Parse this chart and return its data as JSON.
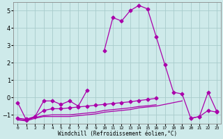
{
  "xlabel": "Windchill (Refroidissement éolien,°C)",
  "background_color": "#ceeaea",
  "grid_color": "#a8cccc",
  "line_color": "#aa00aa",
  "x": [
    0,
    1,
    2,
    3,
    4,
    5,
    6,
    7,
    8,
    9,
    10,
    11,
    12,
    13,
    14,
    15,
    16,
    17,
    18,
    19,
    20,
    21,
    22,
    23
  ],
  "y_main": [
    -0.3,
    -1.3,
    -1.1,
    -0.2,
    -0.2,
    -0.4,
    -0.2,
    -0.5,
    0.4,
    null,
    2.7,
    4.6,
    4.4,
    5.0,
    5.3,
    5.1,
    3.5,
    1.9,
    0.3,
    0.2,
    -1.2,
    -1.1,
    0.3,
    -0.8
  ],
  "y_line2": [
    -1.2,
    -1.25,
    -1.1,
    -0.75,
    -0.65,
    -0.65,
    -0.6,
    -0.55,
    -0.5,
    -0.45,
    -0.4,
    -0.35,
    -0.3,
    -0.25,
    -0.18,
    -0.12,
    -0.05,
    null,
    null,
    null,
    -1.2,
    -1.1,
    -0.75,
    -0.85
  ],
  "y_line3": [
    -1.25,
    -1.3,
    -1.15,
    -1.05,
    -1.0,
    -1.0,
    -1.0,
    -0.95,
    -0.9,
    -0.85,
    -0.75,
    -0.7,
    -0.65,
    -0.6,
    -0.52,
    -0.48,
    -0.42,
    null,
    null,
    null,
    null,
    null,
    null,
    null
  ],
  "y_line4": [
    -1.3,
    -1.35,
    -1.2,
    -1.1,
    -1.1,
    -1.1,
    -1.1,
    -1.05,
    -1.0,
    -0.95,
    -0.85,
    -0.8,
    -0.75,
    -0.7,
    -0.6,
    -0.55,
    -0.5,
    -0.4,
    -0.3,
    -0.2,
    null,
    null,
    null,
    null
  ],
  "ylim": [
    -1.5,
    5.5
  ],
  "xlim": [
    -0.5,
    23.5
  ],
  "yticks": [
    -1,
    0,
    1,
    2,
    3,
    4,
    5
  ],
  "xticks": [
    0,
    1,
    2,
    3,
    4,
    5,
    6,
    7,
    8,
    9,
    10,
    11,
    12,
    13,
    14,
    15,
    16,
    17,
    18,
    19,
    20,
    21,
    22,
    23
  ]
}
